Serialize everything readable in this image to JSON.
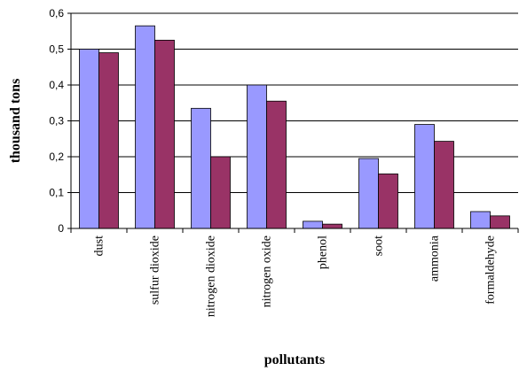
{
  "chart_data": {
    "type": "bar",
    "xlabel": "pollutants",
    "ylabel": "thousand tons",
    "ylim": [
      0,
      0.6
    ],
    "yticks": [
      "0",
      "0,1",
      "0,2",
      "0,3",
      "0,4",
      "0,5",
      "0,6"
    ],
    "grid": true,
    "legend": "none",
    "categories": [
      "dust",
      "sulfur dioxide",
      "nitrogen dioxide",
      "nitrogen oxide",
      "phenol",
      "soot",
      "ammonia",
      "formaldehyde"
    ],
    "series": [
      {
        "color": "#9999ff",
        "values": [
          0.5,
          0.565,
          0.335,
          0.4,
          0.02,
          0.195,
          0.29,
          0.047
        ]
      },
      {
        "color": "#993366",
        "values": [
          0.49,
          0.525,
          0.2,
          0.355,
          0.012,
          0.152,
          0.243,
          0.035
        ]
      }
    ]
  }
}
